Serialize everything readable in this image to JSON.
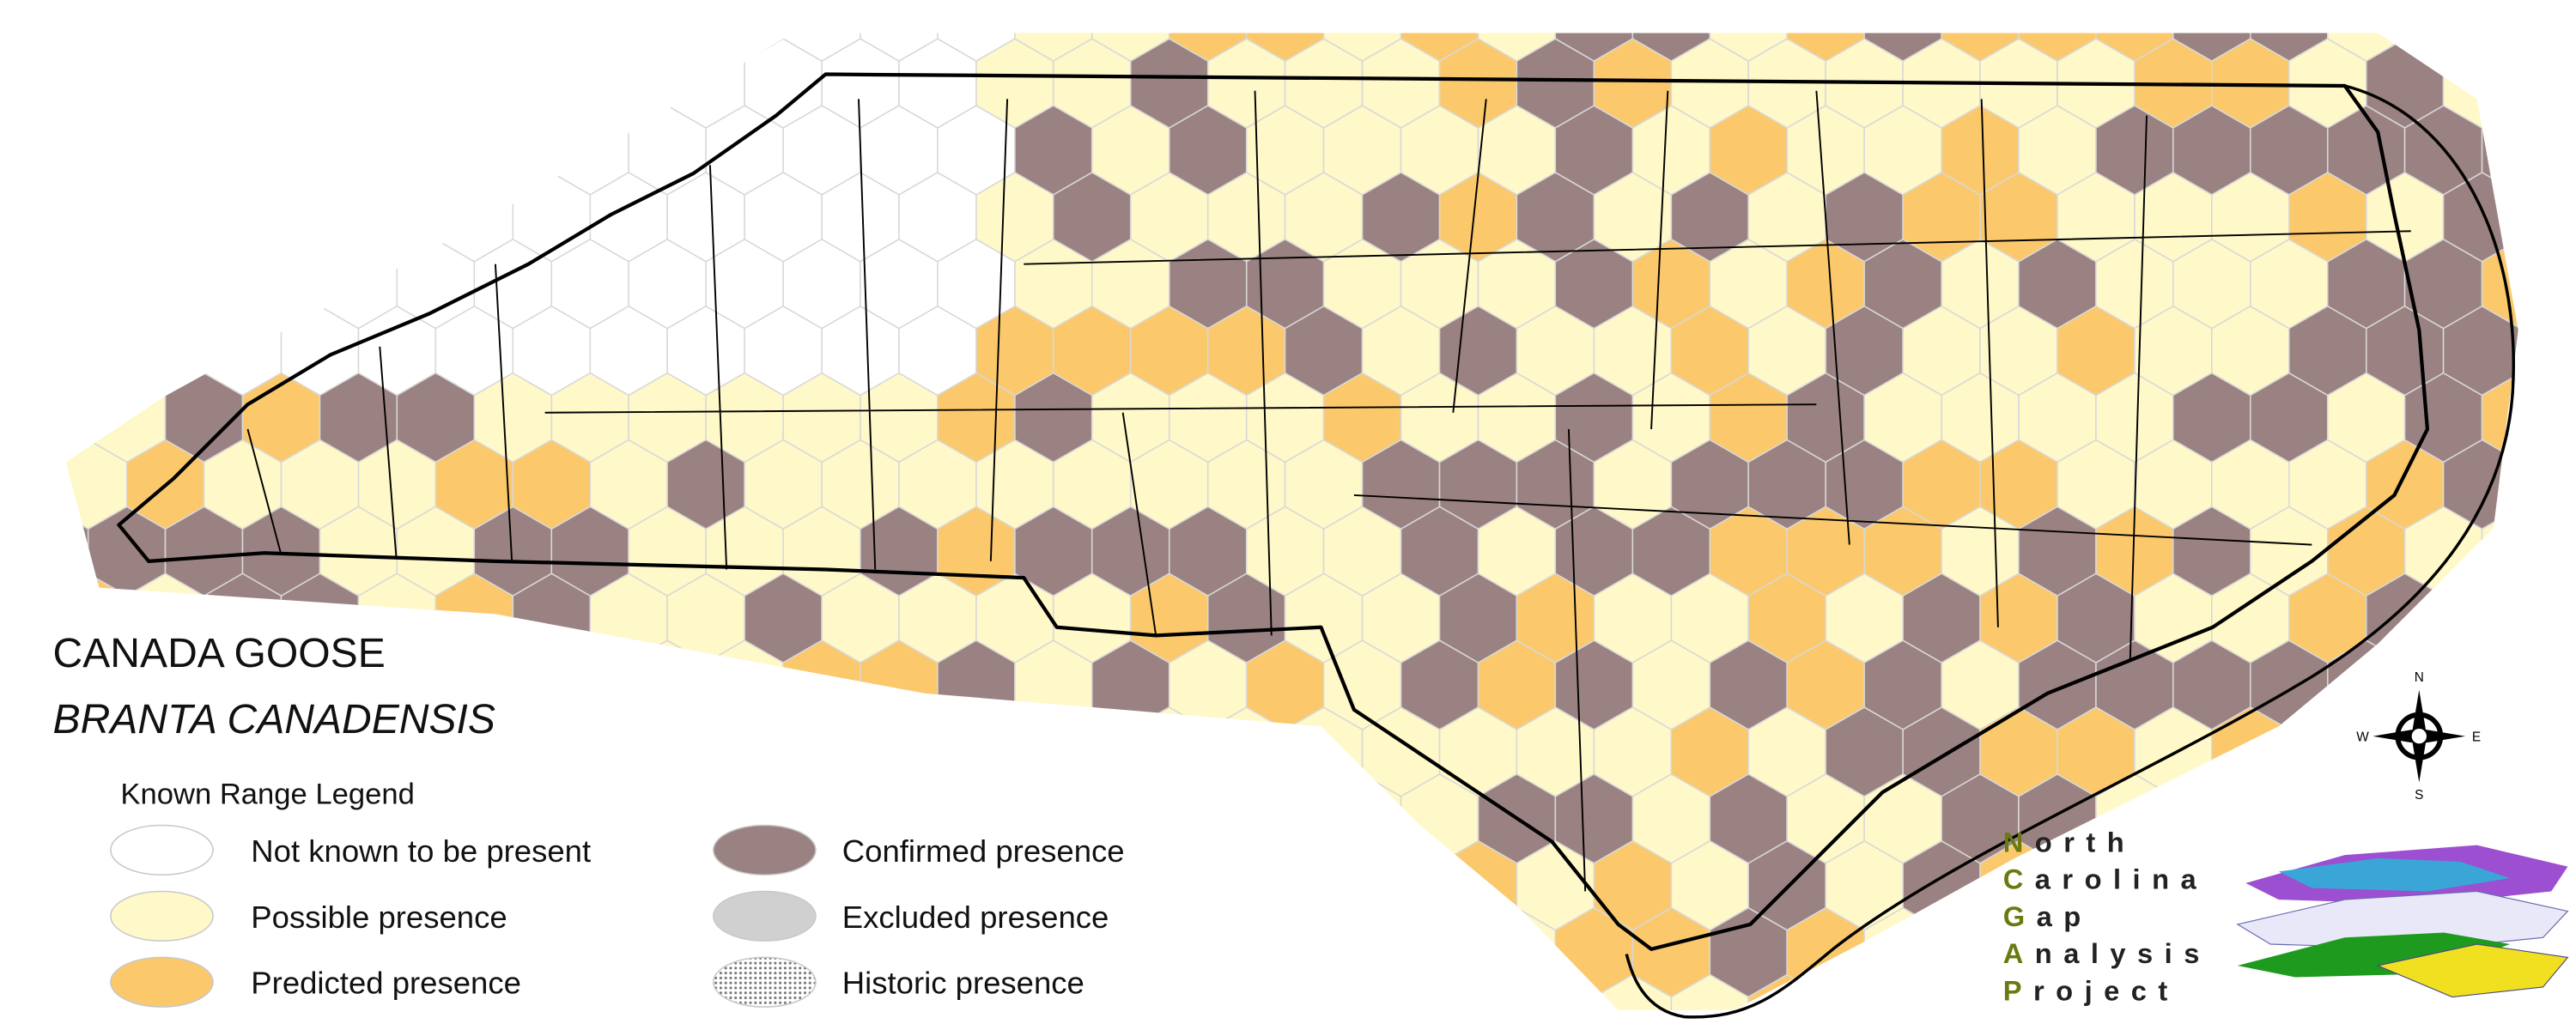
{
  "title": "CANADA GOOSE",
  "subtitle": "BRANTA CANADENSIS",
  "legend": {
    "title": "Known Range Legend",
    "items": [
      "Not known to be present",
      "Possible presence",
      "Predicted presence",
      "Confirmed presence",
      "Excluded presence",
      "Historic presence"
    ]
  },
  "compass": {
    "n": "N",
    "s": "S",
    "e": "E",
    "w": "W"
  },
  "logo": {
    "lines": [
      {
        "initial": "N",
        "rest": "orth"
      },
      {
        "initial": "C",
        "rest": "arolina"
      },
      {
        "initial": "G",
        "rest": "ap"
      },
      {
        "initial": "A",
        "rest": "nalysis"
      },
      {
        "initial": "P",
        "rest": "roject"
      }
    ]
  }
}
